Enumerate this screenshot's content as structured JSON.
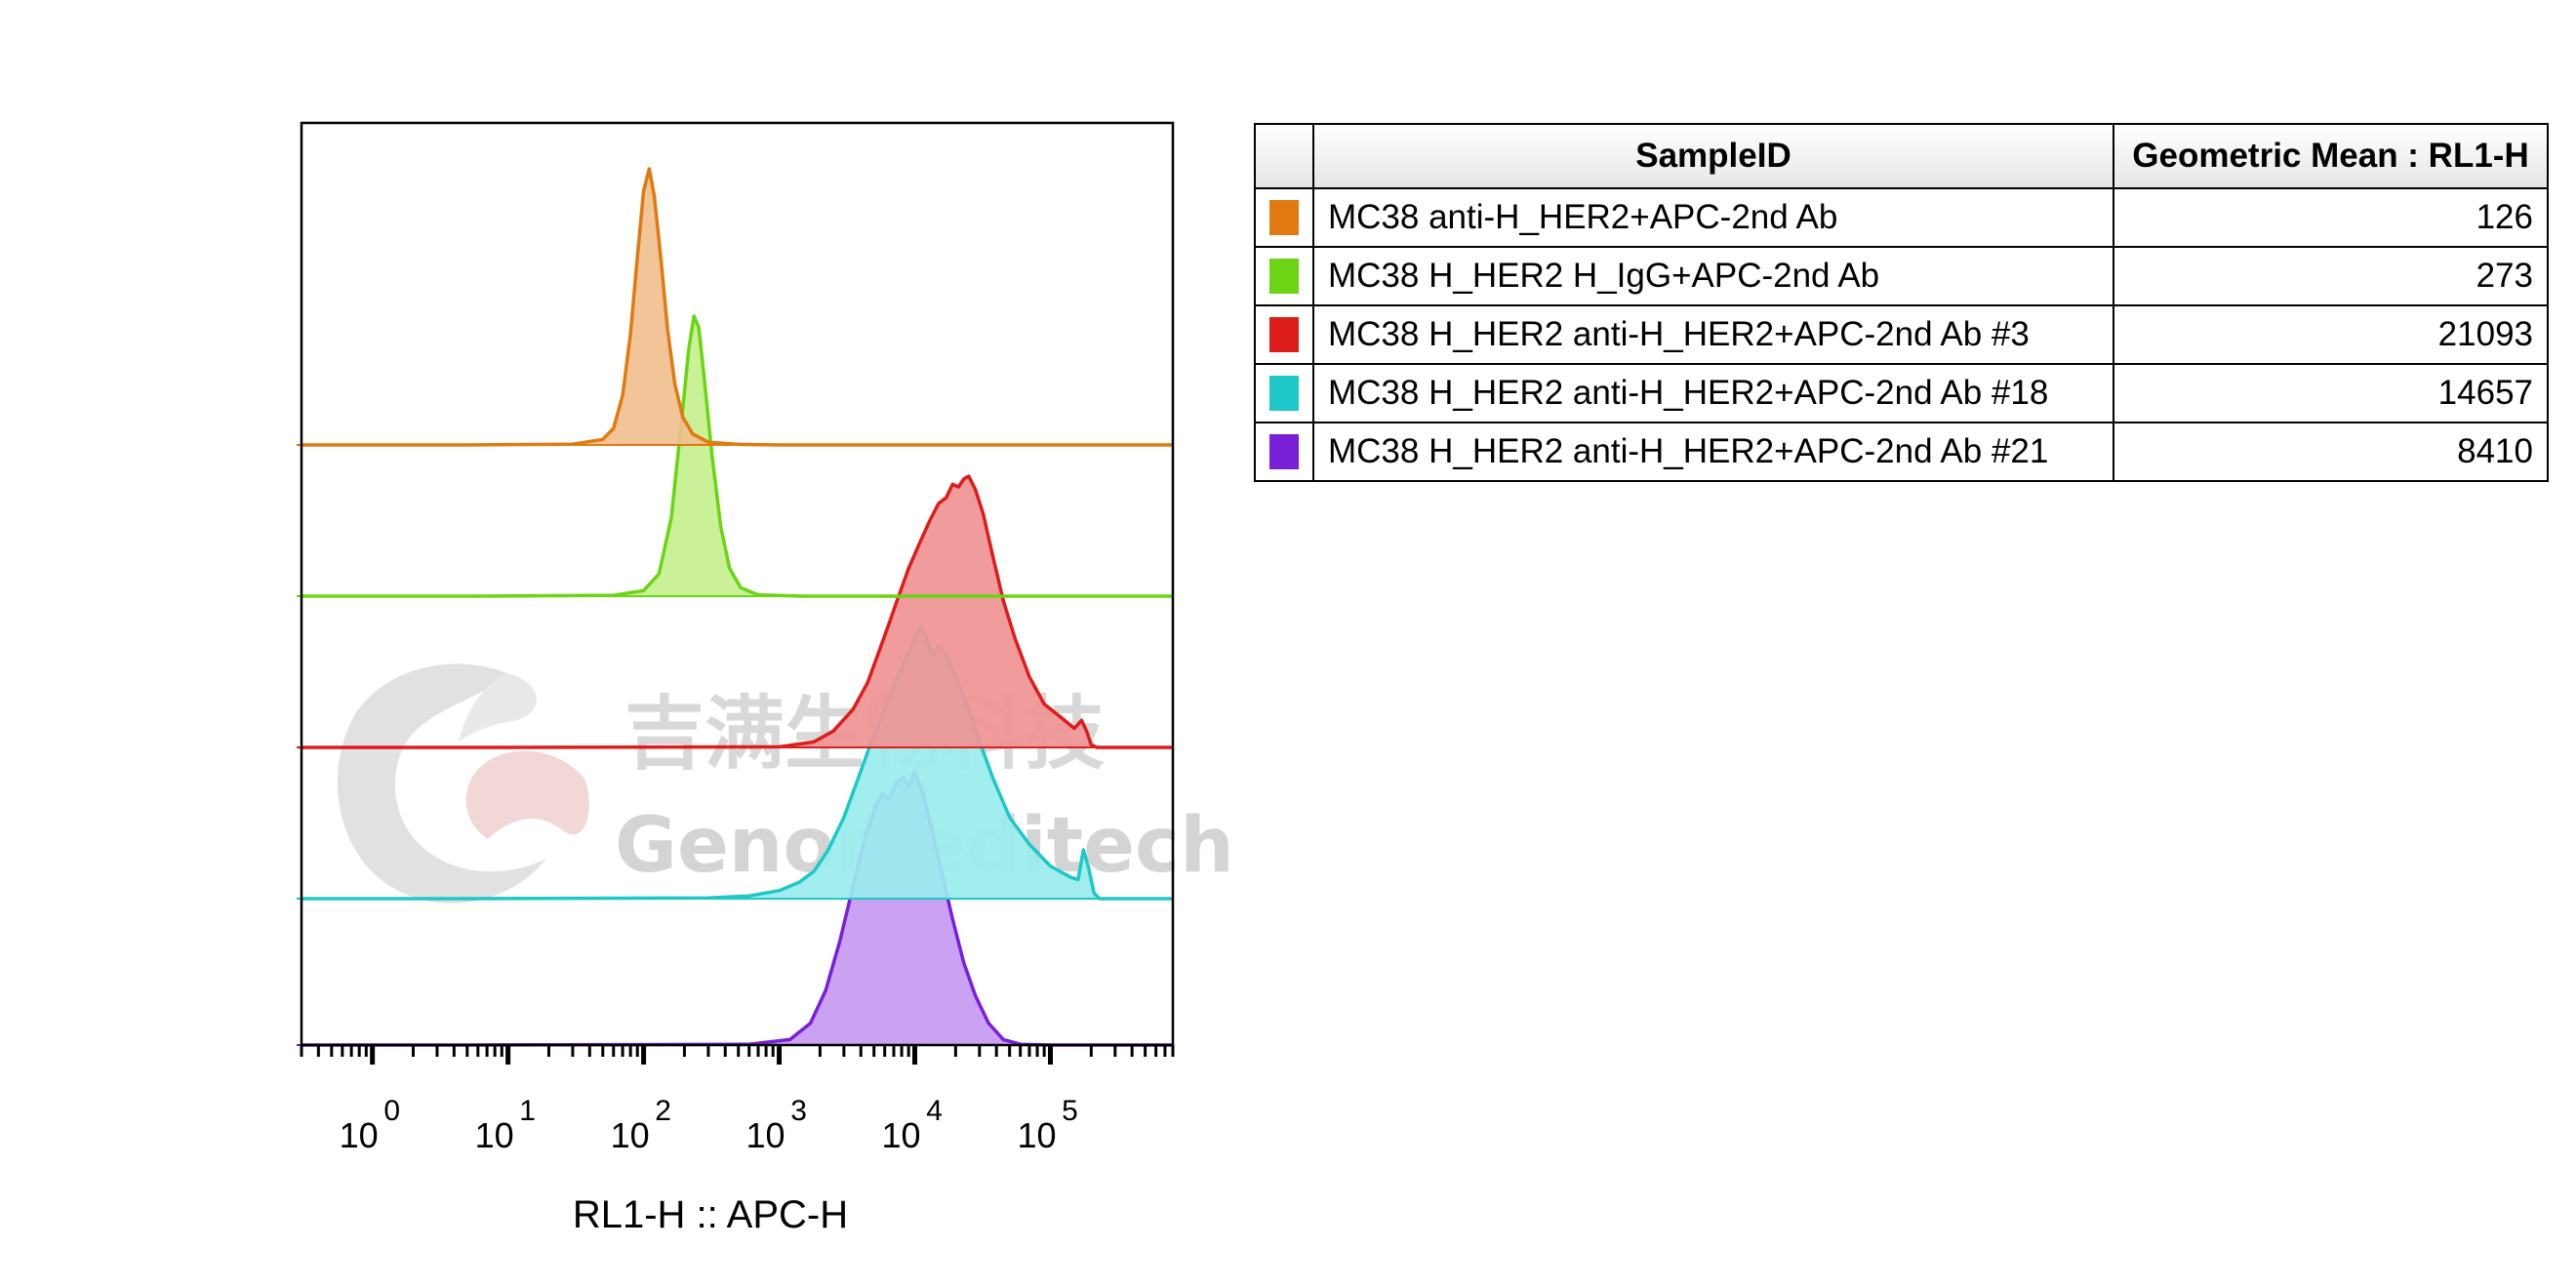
{
  "chart_data": {
    "type": "area",
    "subtype": "stacked-offset histograms (flow cytometry overlay)",
    "xlabel": "RL1-H :: APC-H",
    "x_scale": "log",
    "xlim": [
      0.3,
      800000
    ],
    "x_tick_labels": [
      {
        "base": "10",
        "exp": "0",
        "value": 1
      },
      {
        "base": "10",
        "exp": "1",
        "value": 10
      },
      {
        "base": "10",
        "exp": "2",
        "value": 100
      },
      {
        "base": "10",
        "exp": "3",
        "value": 1000
      },
      {
        "base": "10",
        "exp": "4",
        "value": 10000
      },
      {
        "base": "10",
        "exp": "5",
        "value": 100000
      }
    ],
    "series": [
      {
        "name": "MC38 anti-H_HER2+APC-2nd Ab",
        "color": "#e07a10",
        "fill": "#f0c08e",
        "geometric_mean": "126",
        "points": [
          [
            5,
            0
          ],
          [
            30,
            0.003
          ],
          [
            50,
            0.02
          ],
          [
            60,
            0.06
          ],
          [
            70,
            0.18
          ],
          [
            80,
            0.4
          ],
          [
            90,
            0.68
          ],
          [
            100,
            0.92
          ],
          [
            110,
            1.0
          ],
          [
            120,
            0.9
          ],
          [
            135,
            0.66
          ],
          [
            150,
            0.42
          ],
          [
            170,
            0.22
          ],
          [
            195,
            0.1
          ],
          [
            230,
            0.04
          ],
          [
            300,
            0.01
          ],
          [
            500,
            0.002
          ],
          [
            1000,
            0
          ]
        ]
      },
      {
        "name": "MC38 H_HER2 H_IgG+APC-2nd Ab",
        "color": "#6bd415",
        "fill": "#c6f08e",
        "geometric_mean": "273",
        "points": [
          [
            5,
            0
          ],
          [
            60,
            0.003
          ],
          [
            100,
            0.02
          ],
          [
            130,
            0.08
          ],
          [
            160,
            0.28
          ],
          [
            190,
            0.62
          ],
          [
            215,
            0.88
          ],
          [
            235,
            1.0
          ],
          [
            255,
            0.96
          ],
          [
            280,
            0.78
          ],
          [
            320,
            0.5
          ],
          [
            370,
            0.25
          ],
          [
            430,
            0.1
          ],
          [
            520,
            0.03
          ],
          [
            700,
            0.005
          ],
          [
            1500,
            0
          ]
        ]
      },
      {
        "name": "MC38 H_HER2 anti-H_HER2+APC-2nd Ab #3",
        "color": "#dd1c1c",
        "fill": "#ef9494",
        "geometric_mean": "21093",
        "points": [
          [
            5,
            0
          ],
          [
            1000,
            0.002
          ],
          [
            1800,
            0.02
          ],
          [
            2500,
            0.06
          ],
          [
            3500,
            0.14
          ],
          [
            4500,
            0.24
          ],
          [
            5500,
            0.36
          ],
          [
            6500,
            0.46
          ],
          [
            7500,
            0.55
          ],
          [
            9000,
            0.66
          ],
          [
            11000,
            0.76
          ],
          [
            13000,
            0.84
          ],
          [
            15000,
            0.9
          ],
          [
            17000,
            0.92
          ],
          [
            19000,
            0.97
          ],
          [
            21000,
            0.96
          ],
          [
            23000,
            0.99
          ],
          [
            25000,
            1.0
          ],
          [
            28000,
            0.95
          ],
          [
            32000,
            0.86
          ],
          [
            37000,
            0.72
          ],
          [
            45000,
            0.54
          ],
          [
            55000,
            0.4
          ],
          [
            70000,
            0.26
          ],
          [
            90000,
            0.16
          ],
          [
            120000,
            0.11
          ],
          [
            150000,
            0.07
          ],
          [
            170000,
            0.1
          ],
          [
            185000,
            0.06
          ],
          [
            200000,
            0.01
          ],
          [
            220000,
            0
          ]
        ]
      },
      {
        "name": "MC38 H_HER2 anti-H_HER2+APC-2nd Ab #18",
        "color": "#1ec8c8",
        "fill": "#9aeced",
        "geometric_mean": "14657",
        "points": [
          [
            5,
            0
          ],
          [
            300,
            0.003
          ],
          [
            600,
            0.01
          ],
          [
            1000,
            0.03
          ],
          [
            1400,
            0.06
          ],
          [
            1800,
            0.1
          ],
          [
            2300,
            0.18
          ],
          [
            3000,
            0.3
          ],
          [
            3800,
            0.44
          ],
          [
            4800,
            0.58
          ],
          [
            6000,
            0.7
          ],
          [
            7200,
            0.8
          ],
          [
            8500,
            0.88
          ],
          [
            10000,
            0.96
          ],
          [
            11000,
            1.0
          ],
          [
            12000,
            0.97
          ],
          [
            13500,
            0.9
          ],
          [
            15000,
            0.93
          ],
          [
            17000,
            0.9
          ],
          [
            20000,
            0.82
          ],
          [
            24000,
            0.72
          ],
          [
            30000,
            0.58
          ],
          [
            38000,
            0.44
          ],
          [
            50000,
            0.3
          ],
          [
            70000,
            0.2
          ],
          [
            100000,
            0.12
          ],
          [
            140000,
            0.08
          ],
          [
            160000,
            0.07
          ],
          [
            175000,
            0.18
          ],
          [
            190000,
            0.12
          ],
          [
            210000,
            0.02
          ],
          [
            230000,
            0
          ]
        ]
      },
      {
        "name": "MC38 H_HER2 anti-H_HER2+APC-2nd Ab #21",
        "color": "#7a1fd8",
        "fill": "#c69af0",
        "geometric_mean": "8410",
        "points": [
          [
            5,
            0
          ],
          [
            600,
            0.003
          ],
          [
            1200,
            0.02
          ],
          [
            1700,
            0.08
          ],
          [
            2200,
            0.2
          ],
          [
            2800,
            0.38
          ],
          [
            3500,
            0.58
          ],
          [
            4300,
            0.76
          ],
          [
            5200,
            0.88
          ],
          [
            5800,
            0.92
          ],
          [
            6500,
            0.9
          ],
          [
            7300,
            0.96
          ],
          [
            8200,
            0.98
          ],
          [
            9000,
            0.95
          ],
          [
            10000,
            1.0
          ],
          [
            11500,
            0.92
          ],
          [
            13500,
            0.78
          ],
          [
            16000,
            0.62
          ],
          [
            19000,
            0.46
          ],
          [
            23000,
            0.3
          ],
          [
            28000,
            0.18
          ],
          [
            35000,
            0.08
          ],
          [
            45000,
            0.02
          ],
          [
            60000,
            0.003
          ],
          [
            100000,
            0
          ]
        ]
      }
    ]
  },
  "legend": {
    "header_sample": "SampleID",
    "header_value": "Geometric Mean : RL1-H",
    "rows": [
      {
        "name": "MC38 anti-H_HER2+APC-2nd Ab",
        "value": "126",
        "color": "#e07a10"
      },
      {
        "name": "MC38 H_HER2 H_IgG+APC-2nd Ab",
        "value": "273",
        "color": "#6bd415"
      },
      {
        "name": "MC38 H_HER2 anti-H_HER2+APC-2nd Ab #3",
        "value": "21093",
        "color": "#dd1c1c"
      },
      {
        "name": "MC38 H_HER2 anti-H_HER2+APC-2nd Ab #18",
        "value": "14657",
        "color": "#1ec8c8"
      },
      {
        "name": "MC38 H_HER2 anti-H_HER2+APC-2nd Ab #21",
        "value": "8410",
        "color": "#7a1fd8"
      }
    ]
  },
  "watermark": {
    "text_cn": "吉满生物科技",
    "text_en": "Genomeditech"
  }
}
